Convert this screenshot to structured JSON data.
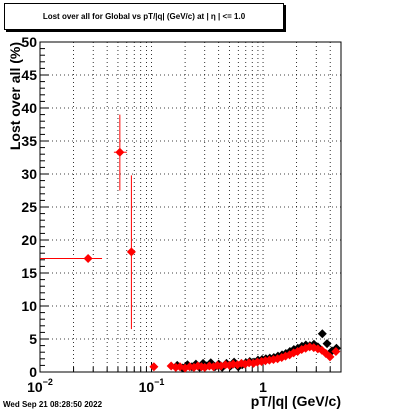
{
  "header": {
    "title": "Lost over all for Global vs pT/|q| (GeV/c) at |  η | <= 1.0"
  },
  "footer": {
    "timestamp": "Wed Sep 21 08:28:50 2022"
  },
  "chart_data": {
    "type": "scatter",
    "title": "Lost over all for Global vs pT/|q| (GeV/c) at |  η | <= 1.0",
    "xlabel": "pT/|q| (GeV/c)",
    "ylabel": "Lost over all (%)",
    "xscale": "log",
    "xlim": [
      0.01,
      5.0
    ],
    "ylim": [
      0,
      50
    ],
    "grid": true,
    "x_tick_labels": [
      {
        "value": 0.01,
        "base": "10",
        "exp": "−2"
      },
      {
        "value": 0.1,
        "base": "10",
        "exp": "−1"
      },
      {
        "value": 1,
        "base": "1",
        "exp": ""
      }
    ],
    "y_tick_labels": [
      0,
      5,
      10,
      15,
      20,
      25,
      30,
      35,
      40,
      45,
      50
    ],
    "series": [
      {
        "color": "#000000",
        "marker": "diamond",
        "points": [
          {
            "x": 0.17,
            "y": 1.0
          },
          {
            "x": 0.19,
            "y": 0.6
          },
          {
            "x": 0.21,
            "y": 1.1
          },
          {
            "x": 0.23,
            "y": 0.8
          },
          {
            "x": 0.25,
            "y": 1.2
          },
          {
            "x": 0.27,
            "y": 0.7
          },
          {
            "x": 0.29,
            "y": 1.3
          },
          {
            "x": 0.31,
            "y": 0.9
          },
          {
            "x": 0.34,
            "y": 1.4
          },
          {
            "x": 0.37,
            "y": 0.8
          },
          {
            "x": 0.4,
            "y": 1.2
          },
          {
            "x": 0.43,
            "y": 0.7
          },
          {
            "x": 0.47,
            "y": 1.3
          },
          {
            "x": 0.51,
            "y": 0.9
          },
          {
            "x": 0.55,
            "y": 1.5
          },
          {
            "x": 0.6,
            "y": 0.8
          },
          {
            "x": 0.65,
            "y": 1.1
          },
          {
            "x": 0.7,
            "y": 1.4
          },
          {
            "x": 0.76,
            "y": 1.6
          },
          {
            "x": 0.83,
            "y": 1.5
          },
          {
            "x": 0.9,
            "y": 1.8
          },
          {
            "x": 0.98,
            "y": 1.9
          },
          {
            "x": 1.06,
            "y": 2.0
          },
          {
            "x": 1.15,
            "y": 2.1
          },
          {
            "x": 1.25,
            "y": 2.2
          },
          {
            "x": 1.36,
            "y": 2.4
          },
          {
            "x": 1.48,
            "y": 2.6
          },
          {
            "x": 1.6,
            "y": 2.8
          },
          {
            "x": 1.74,
            "y": 3.1
          },
          {
            "x": 1.89,
            "y": 3.4
          },
          {
            "x": 2.05,
            "y": 3.6
          },
          {
            "x": 2.23,
            "y": 3.9
          },
          {
            "x": 2.42,
            "y": 4.1
          },
          {
            "x": 2.63,
            "y": 4.0
          },
          {
            "x": 2.86,
            "y": 4.2
          },
          {
            "x": 3.1,
            "y": 3.8
          },
          {
            "x": 3.4,
            "y": 5.8
          },
          {
            "x": 3.75,
            "y": 4.3
          },
          {
            "x": 4.15,
            "y": 3.2
          },
          {
            "x": 4.55,
            "y": 3.6
          }
        ]
      },
      {
        "color": "#ff0000",
        "marker": "diamond",
        "points": [
          {
            "x": 0.027,
            "y": 17.2,
            "xlo": 0.01,
            "xhi": 0.036,
            "ylo": 17.2,
            "yhi": 17.2
          },
          {
            "x": 0.052,
            "y": 33.3,
            "xlo": 0.046,
            "xhi": 0.06,
            "ylo": 27.5,
            "yhi": 39.0
          },
          {
            "x": 0.066,
            "y": 18.2,
            "xlo": 0.064,
            "xhi": 0.068,
            "ylo": 6.5,
            "yhi": 29.8
          },
          {
            "x": 0.105,
            "y": 0.8
          },
          {
            "x": 0.15,
            "y": 0.9
          },
          {
            "x": 0.165,
            "y": 0.7
          },
          {
            "x": 0.18,
            "y": 0.8
          },
          {
            "x": 0.2,
            "y": 0.6
          },
          {
            "x": 0.22,
            "y": 0.8
          },
          {
            "x": 0.24,
            "y": 0.7
          },
          {
            "x": 0.26,
            "y": 0.9
          },
          {
            "x": 0.28,
            "y": 0.8
          },
          {
            "x": 0.3,
            "y": 0.7
          },
          {
            "x": 0.33,
            "y": 0.9
          },
          {
            "x": 0.36,
            "y": 0.8
          },
          {
            "x": 0.39,
            "y": 1.0
          },
          {
            "x": 0.42,
            "y": 0.9
          },
          {
            "x": 0.46,
            "y": 1.1
          },
          {
            "x": 0.5,
            "y": 1.0
          },
          {
            "x": 0.54,
            "y": 1.2
          },
          {
            "x": 0.59,
            "y": 1.1
          },
          {
            "x": 0.64,
            "y": 1.3
          },
          {
            "x": 0.69,
            "y": 1.2
          },
          {
            "x": 0.75,
            "y": 1.4
          },
          {
            "x": 0.82,
            "y": 1.3
          },
          {
            "x": 0.89,
            "y": 1.5
          },
          {
            "x": 0.97,
            "y": 1.6
          },
          {
            "x": 1.05,
            "y": 1.7
          },
          {
            "x": 1.14,
            "y": 1.8
          },
          {
            "x": 1.24,
            "y": 1.9
          },
          {
            "x": 1.35,
            "y": 2.0
          },
          {
            "x": 1.47,
            "y": 2.2
          },
          {
            "x": 1.59,
            "y": 2.4
          },
          {
            "x": 1.73,
            "y": 2.6
          },
          {
            "x": 1.88,
            "y": 2.9
          },
          {
            "x": 2.04,
            "y": 3.1
          },
          {
            "x": 2.22,
            "y": 3.4
          },
          {
            "x": 2.41,
            "y": 3.6
          },
          {
            "x": 2.62,
            "y": 3.8
          },
          {
            "x": 2.85,
            "y": 3.7
          },
          {
            "x": 3.1,
            "y": 3.5
          },
          {
            "x": 3.37,
            "y": 3.3
          },
          {
            "x": 3.66,
            "y": 2.8
          },
          {
            "x": 3.98,
            "y": 2.3
          },
          {
            "x": 4.5,
            "y": 3.1
          }
        ]
      }
    ]
  }
}
